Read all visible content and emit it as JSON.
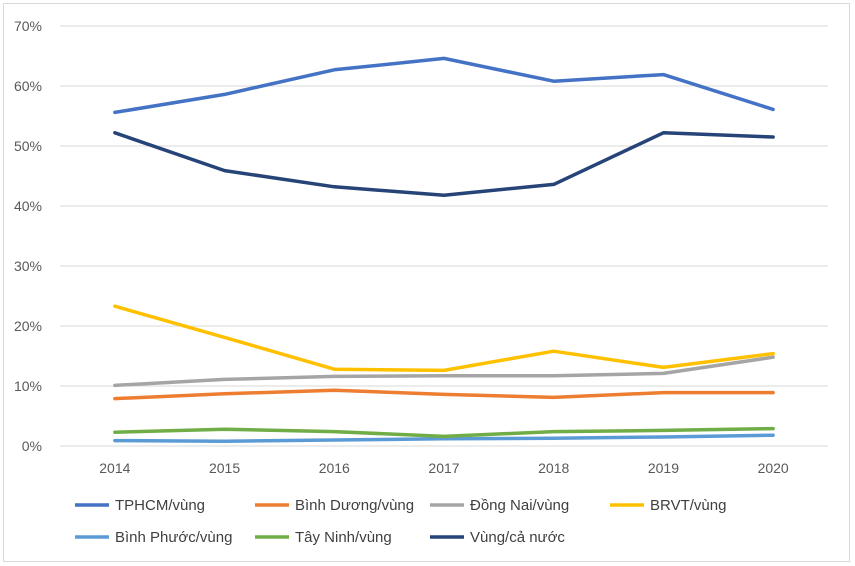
{
  "chart_data": {
    "type": "line",
    "title": "",
    "xlabel": "",
    "ylabel": "",
    "categories": [
      "2014",
      "2015",
      "2016",
      "2017",
      "2018",
      "2019",
      "2020"
    ],
    "ylim": [
      0,
      70
    ],
    "yticks": [
      "0%",
      "10%",
      "20%",
      "30%",
      "40%",
      "50%",
      "60%",
      "70%"
    ],
    "grid": true,
    "legend_position": "bottom",
    "series": [
      {
        "name": "TPHCM/vùng",
        "color": "#4472c4",
        "values": [
          55.6,
          58.6,
          62.7,
          64.6,
          60.8,
          61.9,
          56.1
        ]
      },
      {
        "name": "Bình Dương/vùng",
        "color": "#ed7d31",
        "values": [
          7.9,
          8.7,
          9.3,
          8.6,
          8.1,
          8.9,
          8.9
        ]
      },
      {
        "name": "Đồng Nai/vùng",
        "color": "#a5a5a5",
        "values": [
          10.1,
          11.1,
          11.6,
          11.7,
          11.7,
          12.1,
          14.8
        ]
      },
      {
        "name": "BRVT/vùng",
        "color": "#ffc000",
        "values": [
          23.3,
          18.1,
          12.8,
          12.6,
          15.8,
          13.1,
          15.4
        ]
      },
      {
        "name": "Bình Phước/vùng",
        "color": "#5b9bd5",
        "values": [
          0.9,
          0.8,
          1.0,
          1.2,
          1.3,
          1.5,
          1.8
        ]
      },
      {
        "name": "Tây Ninh/vùng",
        "color": "#70ad47",
        "values": [
          2.3,
          2.8,
          2.4,
          1.6,
          2.4,
          2.6,
          2.9
        ]
      },
      {
        "name": "Vùng/cả nước",
        "color": "#264478",
        "values": [
          52.2,
          45.9,
          43.2,
          41.8,
          43.6,
          52.2,
          51.5
        ]
      }
    ]
  }
}
